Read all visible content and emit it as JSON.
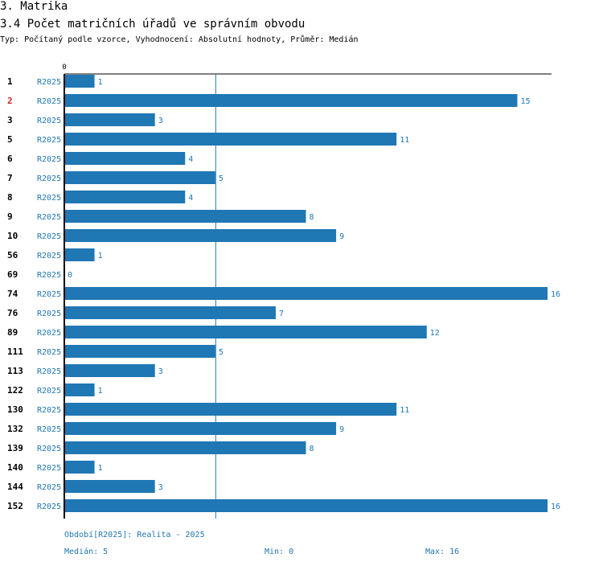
{
  "header": {
    "section": "3. Matrika",
    "title": "3.4 Počet matričních úřadů ve správním obvodu",
    "subtitle": "Typ: Počítaný podle vzorce, Vyhodnocení: Absolutní hodnoty, Průměr: Medián"
  },
  "chart_data": {
    "type": "bar",
    "orientation": "horizontal",
    "title": "3.4 Počet matričních úřadů ve správním obvodu",
    "series_name": "R2025",
    "categories": [
      "1",
      "2",
      "3",
      "5",
      "6",
      "7",
      "8",
      "9",
      "10",
      "56",
      "69",
      "74",
      "76",
      "89",
      "111",
      "113",
      "122",
      "130",
      "132",
      "139",
      "140",
      "144",
      "152"
    ],
    "highlight_category": "2",
    "values": [
      1,
      15,
      3,
      11,
      4,
      5,
      4,
      8,
      9,
      1,
      0,
      16,
      7,
      12,
      5,
      3,
      1,
      11,
      9,
      8,
      1,
      3,
      16
    ],
    "xlim": [
      0,
      16
    ],
    "x_ticks": [
      0
    ],
    "median": 5,
    "colors": {
      "bar": "#1f77b4",
      "highlight_label": "#d62728",
      "median_line": "#1f77b4"
    }
  },
  "footer": {
    "period": "Období[R2025]: Realita - 2025",
    "median": "Medián: 5",
    "min": "Min: 0",
    "max": "Max: 16"
  }
}
